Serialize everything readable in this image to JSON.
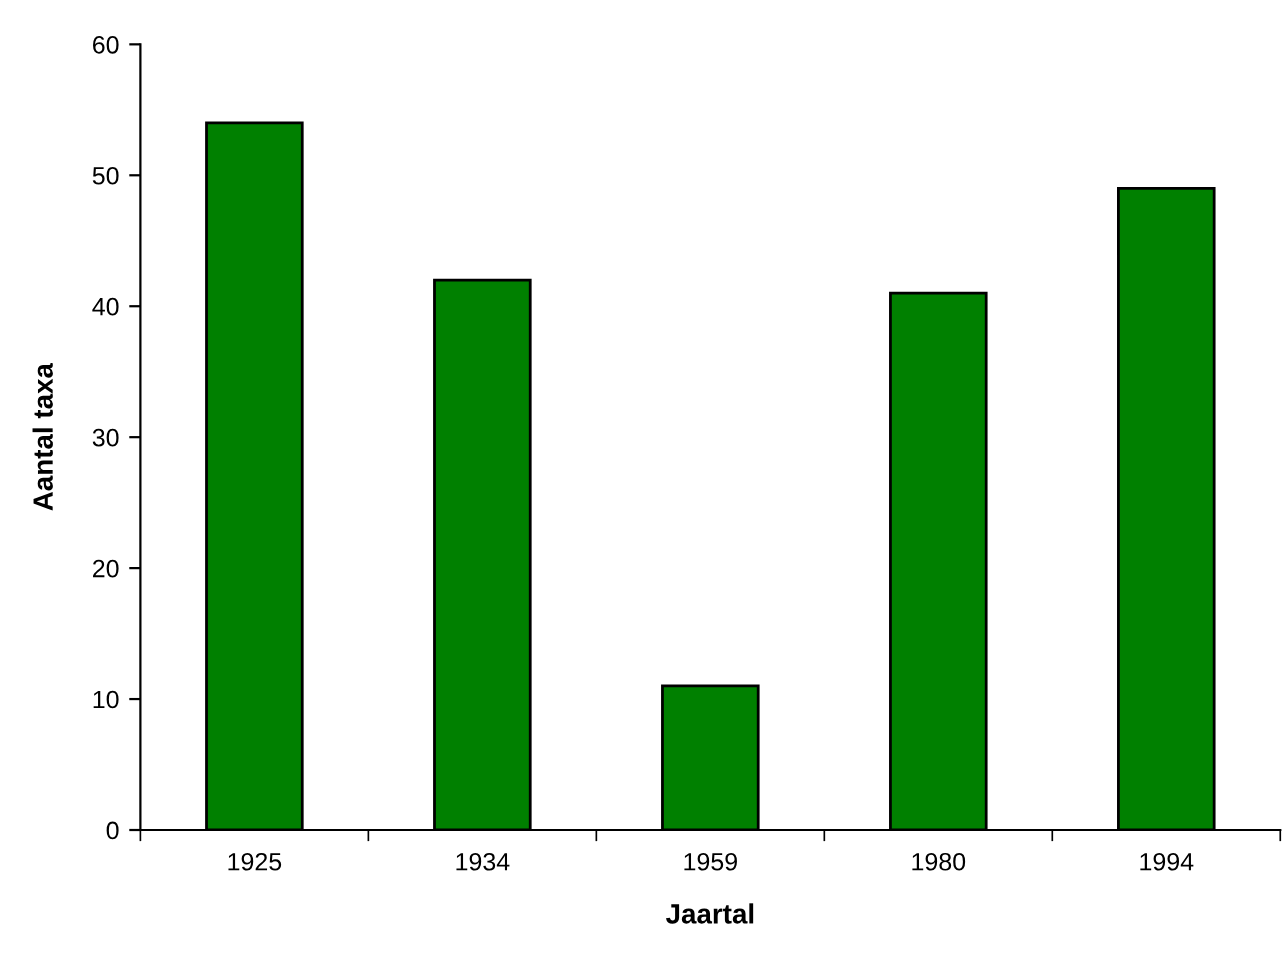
{
  "chart_data": {
    "type": "bar",
    "xlabel": "Jaartal",
    "ylabel": "Aantal taxa",
    "categories": [
      "1925",
      "1934",
      "1959",
      "1980",
      "1994"
    ],
    "values": [
      54,
      42,
      11,
      41,
      49
    ],
    "color": "#008000",
    "ylim": [
      0,
      60
    ],
    "yticks": [
      0,
      10,
      20,
      30,
      40,
      50,
      60
    ],
    "grid": false
  }
}
